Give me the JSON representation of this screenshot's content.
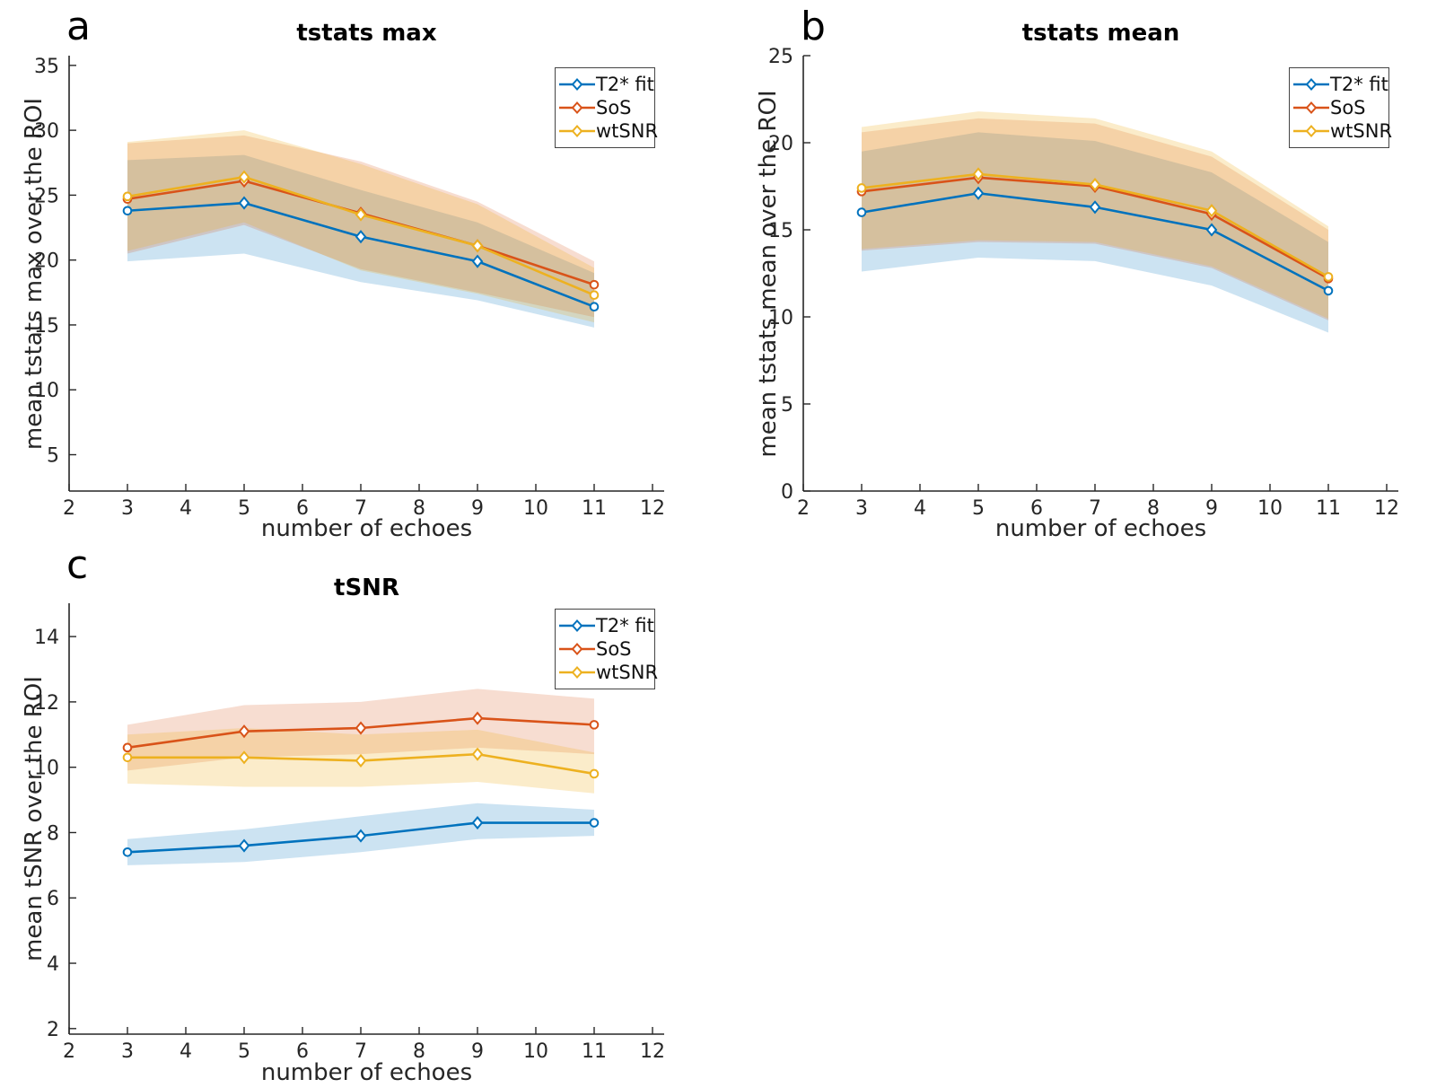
{
  "page": {
    "background": "#ffffff"
  },
  "colors": {
    "t2_fit": "#0072BD",
    "sos": "#D95319",
    "wtsnr": "#EDB120",
    "axis": "#262626"
  },
  "chart_data": [
    {
      "type": "line",
      "panel_label": "a",
      "title": "tstats max",
      "xlabel": "number of echoes",
      "ylabel": "mean tstats max over the ROI",
      "x": [
        3,
        5,
        7,
        9,
        11
      ],
      "xlim": [
        2,
        12.2
      ],
      "ylim": [
        2.2,
        35.75
      ],
      "xticks": [
        2,
        3,
        4,
        5,
        6,
        7,
        8,
        9,
        10,
        11,
        12
      ],
      "yticks": [
        5,
        10,
        15,
        20,
        25,
        30,
        35
      ],
      "grid": false,
      "legend_position": "top-right",
      "band_style": "shaded confidence band",
      "series": [
        {
          "name": "T2* fit",
          "color": "#0072BD",
          "values": [
            23.8,
            24.4,
            21.8,
            19.9,
            16.4
          ],
          "band_lower": [
            19.9,
            20.5,
            18.3,
            16.9,
            14.8
          ],
          "band_upper": [
            27.7,
            28.1,
            25.4,
            22.9,
            19.0
          ]
        },
        {
          "name": "SoS",
          "color": "#D95319",
          "values": [
            24.7,
            26.1,
            23.6,
            21.1,
            18.1
          ],
          "band_lower": [
            20.5,
            22.7,
            19.3,
            17.5,
            15.6
          ],
          "band_upper": [
            29.0,
            29.6,
            27.6,
            24.5,
            19.9
          ]
        },
        {
          "name": "wtSNR",
          "color": "#EDB120",
          "values": [
            24.9,
            26.4,
            23.5,
            21.1,
            17.3
          ],
          "band_lower": [
            20.7,
            22.9,
            19.2,
            17.4,
            15.2
          ],
          "band_upper": [
            29.1,
            30.0,
            27.4,
            24.3,
            19.4
          ]
        }
      ]
    },
    {
      "type": "line",
      "panel_label": "b",
      "title": "tstats mean",
      "xlabel": "number of echoes",
      "ylabel": "mean tstats mean over the ROI",
      "x": [
        3,
        5,
        7,
        9,
        11
      ],
      "xlim": [
        2,
        12.2
      ],
      "ylim": [
        0,
        25
      ],
      "xticks": [
        2,
        3,
        4,
        5,
        6,
        7,
        8,
        9,
        10,
        11,
        12
      ],
      "yticks": [
        0,
        5,
        10,
        15,
        20,
        25
      ],
      "grid": false,
      "legend_position": "top-right",
      "band_style": "shaded confidence band",
      "series": [
        {
          "name": "T2* fit",
          "color": "#0072BD",
          "values": [
            16.0,
            17.1,
            16.3,
            15.0,
            11.5
          ],
          "band_lower": [
            12.6,
            13.4,
            13.2,
            11.8,
            9.1
          ],
          "band_upper": [
            19.5,
            20.6,
            20.1,
            18.3,
            14.3
          ]
        },
        {
          "name": "SoS",
          "color": "#D95319",
          "values": [
            17.2,
            18.0,
            17.5,
            15.9,
            12.2
          ],
          "band_lower": [
            13.8,
            14.3,
            14.2,
            12.8,
            9.8
          ],
          "band_upper": [
            20.6,
            21.4,
            21.1,
            19.2,
            15.0
          ]
        },
        {
          "name": "wtSNR",
          "color": "#EDB120",
          "values": [
            17.4,
            18.2,
            17.6,
            16.1,
            12.3
          ],
          "band_lower": [
            13.9,
            14.4,
            14.3,
            12.9,
            9.9
          ],
          "band_upper": [
            20.9,
            21.8,
            21.4,
            19.5,
            15.2
          ]
        }
      ]
    },
    {
      "type": "line",
      "panel_label": "c",
      "title": "tSNR",
      "xlabel": "number of echoes",
      "ylabel": "mean tSNR over the ROI",
      "x": [
        3,
        5,
        7,
        9,
        11
      ],
      "xlim": [
        2,
        12.2
      ],
      "ylim": [
        1.83,
        15.02
      ],
      "xticks": [
        2,
        3,
        4,
        5,
        6,
        7,
        8,
        9,
        10,
        11,
        12
      ],
      "yticks": [
        2,
        4,
        6,
        8,
        10,
        12,
        14
      ],
      "grid": false,
      "legend_position": "top-right",
      "band_style": "shaded confidence band",
      "series": [
        {
          "name": "T2* fit",
          "color": "#0072BD",
          "values": [
            7.4,
            7.6,
            7.9,
            8.3,
            8.3
          ],
          "band_lower": [
            7.0,
            7.1,
            7.4,
            7.8,
            7.9
          ],
          "band_upper": [
            7.8,
            8.1,
            8.5,
            8.9,
            8.7
          ]
        },
        {
          "name": "SoS",
          "color": "#D95319",
          "values": [
            10.6,
            11.1,
            11.2,
            11.5,
            11.3
          ],
          "band_lower": [
            9.9,
            10.3,
            10.4,
            10.6,
            10.4
          ],
          "band_upper": [
            11.3,
            11.9,
            12.0,
            12.4,
            12.1
          ]
        },
        {
          "name": "wtSNR",
          "color": "#EDB120",
          "values": [
            10.3,
            10.3,
            10.2,
            10.4,
            9.8
          ],
          "band_lower": [
            9.5,
            9.4,
            9.4,
            9.55,
            9.2
          ],
          "band_upper": [
            11.0,
            11.2,
            11.0,
            11.15,
            10.45
          ]
        }
      ]
    }
  ]
}
